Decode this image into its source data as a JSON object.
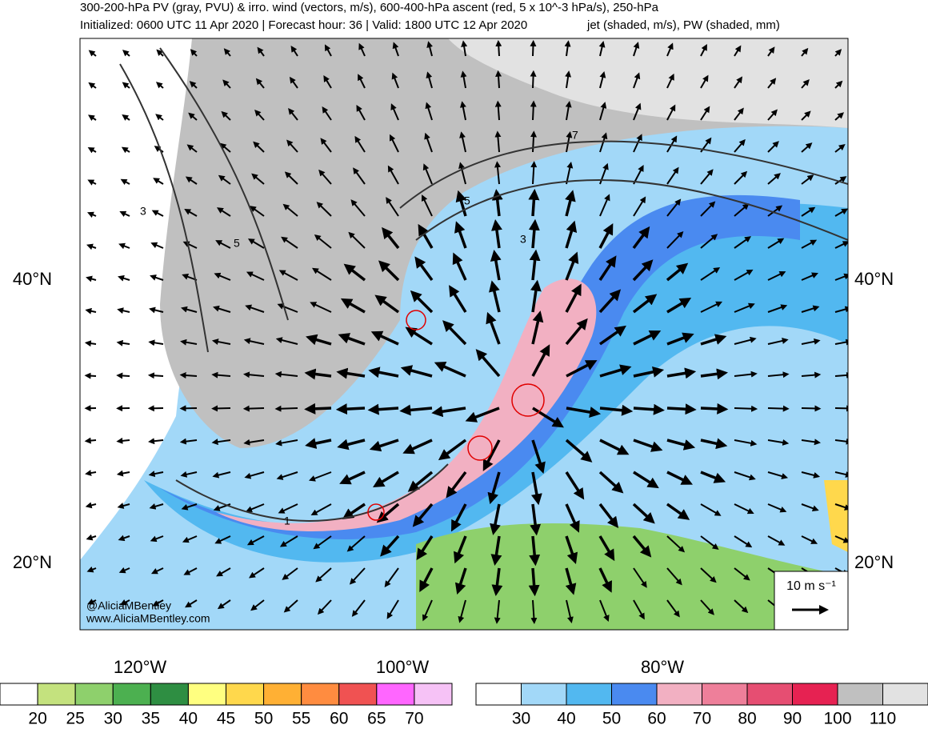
{
  "header": {
    "line1": "300-200-hPa PV (gray, PVU) & irro. wind (vectors, m/s), 600-400-hPa ascent (red, 5 x 10^-3 hPa/s), 250-hPa",
    "line2a": "Initialized: 0600 UTC 11 Apr 2020 | Forecast hour: 36 | Valid: 1800 UTC 12 Apr 2020",
    "line2b": "jet (shaded, m/s), PW (shaded, mm)"
  },
  "map": {
    "lat_labels": [
      "40°N",
      "20°N"
    ],
    "lon_labels": [
      "120°W",
      "100°W",
      "80°W"
    ],
    "contour_labels": [
      "7",
      "5",
      "3",
      "5",
      "3",
      "1"
    ],
    "credit": [
      "@AliciaMBentley",
      "www.AliciaMBentley.com"
    ],
    "reference_vector": "10 m s⁻¹"
  },
  "colorbars": [
    {
      "colors": [
        "#ffffff",
        "#c4e27e",
        "#8ed06c",
        "#4cb050",
        "#2e8e42",
        "#ffff80",
        "#ffd84c",
        "#ffb034",
        "#ff8c40",
        "#f05252",
        "#ff66ff",
        "#f6c2f6"
      ],
      "labels": [
        20,
        25,
        30,
        35,
        40,
        45,
        50,
        55,
        60,
        65,
        70
      ]
    },
    {
      "colors": [
        "#ffffff",
        "#a2d8f8",
        "#52b8f0",
        "#4a8af0",
        "#f2b0c2",
        "#ee7f9a",
        "#e64e72",
        "#e62252",
        "#c0c0c0",
        "#e2e2e2"
      ],
      "labels": [
        30,
        40,
        50,
        60,
        70,
        80,
        90,
        100,
        110
      ]
    }
  ]
}
